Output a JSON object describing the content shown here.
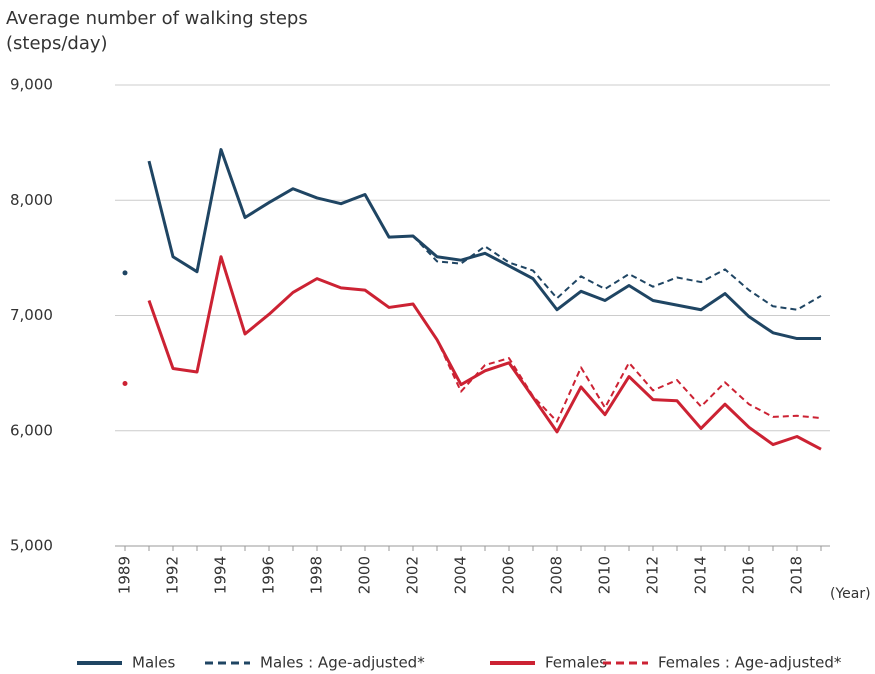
{
  "chart_data": {
    "type": "line",
    "title": "Average number of walking steps",
    "ylabel": "(steps/day)",
    "xlabel": "(Year)",
    "categories": [
      "1989",
      null,
      "1992",
      null,
      "1994",
      null,
      "1996",
      null,
      "1998",
      null,
      "2000",
      null,
      "2002",
      null,
      "2004",
      null,
      "2006",
      null,
      "2008",
      null,
      "2010",
      null,
      "2012",
      null,
      "2014",
      null,
      "2016",
      null,
      "2018",
      null
    ],
    "line_breaks": [
      1
    ],
    "series": [
      {
        "name": "Males",
        "color": "#1f4563",
        "dashed": false,
        "values": [
          7370,
          8340,
          7510,
          7380,
          8440,
          7850,
          7980,
          8100,
          8020,
          7970,
          8050,
          7680,
          7690,
          7510,
          7480,
          7540,
          7430,
          7320,
          7050,
          7210,
          7130,
          7260,
          7130,
          7090,
          7050,
          7190,
          6990,
          6850,
          6800,
          6800
        ]
      },
      {
        "name": "Males : Age-adjusted*",
        "color": "#1f4563",
        "dashed": true,
        "values": [
          null,
          null,
          null,
          null,
          null,
          null,
          null,
          null,
          null,
          null,
          null,
          null,
          7690,
          7470,
          7450,
          7600,
          7460,
          7390,
          7150,
          7340,
          7230,
          7360,
          7250,
          7330,
          7290,
          7400,
          7220,
          7080,
          7050,
          7170
        ]
      },
      {
        "name": "Females",
        "color": "#cc2233",
        "dashed": false,
        "values": [
          6410,
          7130,
          6540,
          6510,
          7510,
          6840,
          7010,
          7200,
          7320,
          7240,
          7220,
          7070,
          7100,
          6790,
          6400,
          6520,
          6590,
          6290,
          5990,
          6380,
          6140,
          6470,
          6270,
          6260,
          6020,
          6230,
          6030,
          5880,
          5950,
          5840
        ]
      },
      {
        "name": "Females : Age-adjusted*",
        "color": "#cc2233",
        "dashed": true,
        "values": [
          null,
          null,
          null,
          null,
          null,
          null,
          null,
          null,
          null,
          null,
          null,
          null,
          7100,
          6790,
          6340,
          6570,
          6630,
          6300,
          6080,
          6550,
          6200,
          6590,
          6350,
          6440,
          6210,
          6420,
          6230,
          6120,
          6130,
          6110
        ]
      }
    ],
    "ylim": [
      5000,
      9000
    ],
    "yticks": [
      {
        "value": 5000,
        "label": "5,000"
      },
      {
        "value": 6000,
        "label": "6,000"
      },
      {
        "value": 7000,
        "label": "7,000"
      },
      {
        "value": 8000,
        "label": "8,000"
      },
      {
        "value": 9000,
        "label": "9,000"
      }
    ],
    "grid": true,
    "legend": "bottom"
  }
}
